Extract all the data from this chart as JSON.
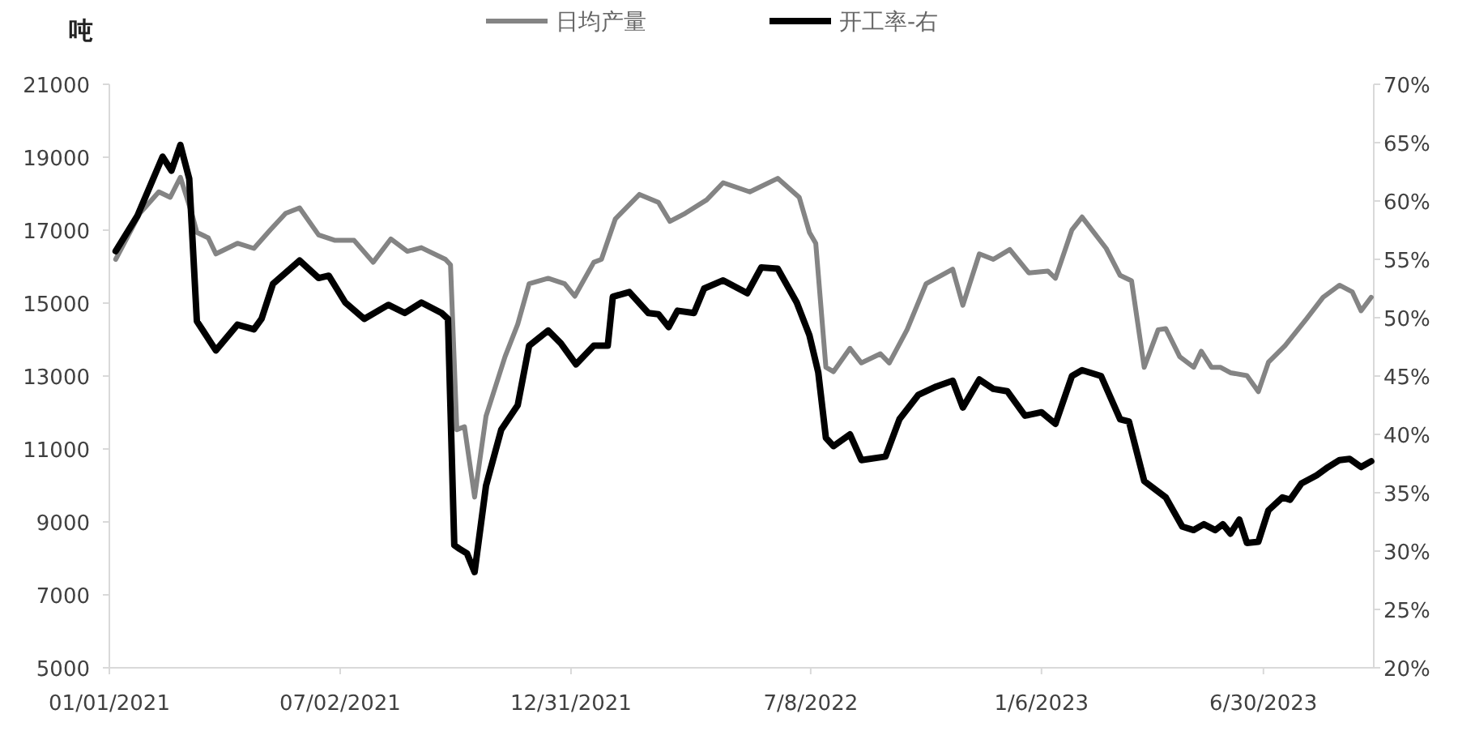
{
  "chart_data": {
    "type": "line",
    "ylabel": "吨",
    "legend": "top",
    "xlim": [
      "2021-01-01",
      "2023-09-25"
    ],
    "xticks": [
      {
        "value": "2021-01-01",
        "label": "01/01/2021"
      },
      {
        "value": "2021-07-02",
        "label": "07/02/2021"
      },
      {
        "value": "2021-12-31",
        "label": "12/31/2021"
      },
      {
        "value": "2022-07-08",
        "label": "7/8/2022"
      },
      {
        "value": "2023-01-06",
        "label": "1/6/2023"
      },
      {
        "value": "2023-06-30",
        "label": "6/30/2023"
      }
    ],
    "ylim": [
      5000,
      21000
    ],
    "yticks": [
      5000,
      7000,
      9000,
      11000,
      13000,
      15000,
      17000,
      19000,
      21000
    ],
    "y2lim": [
      20,
      70
    ],
    "y2ticks": [
      {
        "value": 20,
        "label": "20%"
      },
      {
        "value": 25,
        "label": "25%"
      },
      {
        "value": 30,
        "label": "30%"
      },
      {
        "value": 35,
        "label": "35%"
      },
      {
        "value": 40,
        "label": "40%"
      },
      {
        "value": 45,
        "label": "45%"
      },
      {
        "value": 50,
        "label": "50%"
      },
      {
        "value": 55,
        "label": "55%"
      },
      {
        "value": 60,
        "label": "60%"
      },
      {
        "value": 65,
        "label": "65%"
      },
      {
        "value": 70,
        "label": "70%"
      }
    ],
    "series": [
      {
        "name": "日均产量",
        "color": "#848484",
        "x": [
          "2021-01-06",
          "2021-01-25",
          "2021-02-09",
          "2021-02-18",
          "2021-02-26",
          "2021-03-07",
          "2021-03-11",
          "2021-03-20",
          "2021-03-26",
          "2021-04-12",
          "2021-04-25",
          "2021-05-08",
          "2021-05-20",
          "2021-05-31",
          "2021-06-15",
          "2021-06-28",
          "2021-07-13",
          "2021-07-28",
          "2021-08-11",
          "2021-08-24",
          "2021-09-04",
          "2021-09-23",
          "2021-09-27",
          "2021-10-02",
          "2021-10-08",
          "2021-10-16",
          "2021-10-25",
          "2021-11-09",
          "2021-11-19",
          "2021-11-28",
          "2021-12-13",
          "2021-12-26",
          "2022-01-03",
          "2022-01-18",
          "2022-01-24",
          "2022-02-04",
          "2022-02-23",
          "2022-03-10",
          "2022-03-19",
          "2022-03-31",
          "2022-04-17",
          "2022-04-30",
          "2022-05-21",
          "2022-06-12",
          "2022-06-29",
          "2022-07-07",
          "2022-07-12",
          "2022-07-20",
          "2022-07-26",
          "2022-08-08",
          "2022-08-17",
          "2022-09-01",
          "2022-09-08",
          "2022-09-22",
          "2022-10-07",
          "2022-10-28",
          "2022-11-05",
          "2022-11-18",
          "2022-11-29",
          "2022-12-12",
          "2022-12-27",
          "2023-01-11",
          "2023-01-17",
          "2023-01-30",
          "2023-02-07",
          "2023-02-26",
          "2023-03-09",
          "2023-03-18",
          "2023-03-28",
          "2023-04-08",
          "2023-04-14",
          "2023-04-25",
          "2023-05-06",
          "2023-05-12",
          "2023-05-20",
          "2023-05-27",
          "2023-06-04",
          "2023-06-17",
          "2023-06-26",
          "2023-07-04",
          "2023-07-17",
          "2023-08-03",
          "2023-08-16",
          "2023-08-29",
          "2023-09-08",
          "2023-09-15",
          "2023-09-23"
        ],
        "values": [
          16200,
          17460,
          18050,
          17900,
          18450,
          17460,
          16940,
          16790,
          16350,
          16640,
          16500,
          17010,
          17460,
          17610,
          16870,
          16720,
          16720,
          16120,
          16760,
          16420,
          16520,
          16200,
          16050,
          11530,
          11610,
          9680,
          11900,
          13530,
          14420,
          15530,
          15680,
          15530,
          15190,
          16120,
          16200,
          17310,
          17980,
          17760,
          17240,
          17460,
          17830,
          18300,
          18050,
          18420,
          17900,
          16940,
          16640,
          13240,
          13120,
          13760,
          13360,
          13610,
          13360,
          14270,
          15530,
          15930,
          14940,
          16350,
          16200,
          16470,
          15830,
          15880,
          15680,
          17010,
          17360,
          16500,
          15760,
          15610,
          13240,
          14270,
          14300,
          13530,
          13240,
          13680,
          13240,
          13240,
          13090,
          13010,
          12570,
          13380,
          13830,
          14570,
          15160,
          15490,
          15310,
          14790,
          15160
        ]
      },
      {
        "name": "开工率-右",
        "color": "#000000",
        "axis": "y2",
        "x": [
          "2021-01-06",
          "2021-01-23",
          "2021-02-03",
          "2021-02-12",
          "2021-02-19",
          "2021-02-26",
          "2021-03-05",
          "2021-03-11",
          "2021-03-26",
          "2021-04-12",
          "2021-04-25",
          "2021-05-01",
          "2021-05-10",
          "2021-05-31",
          "2021-06-15",
          "2021-06-23",
          "2021-07-06",
          "2021-07-21",
          "2021-08-09",
          "2021-08-22",
          "2021-09-04",
          "2021-09-20",
          "2021-09-25",
          "2021-09-30",
          "2021-10-04",
          "2021-10-10",
          "2021-10-16",
          "2021-10-25",
          "2021-11-06",
          "2021-11-19",
          "2021-11-28",
          "2021-12-13",
          "2021-12-23",
          "2022-01-04",
          "2022-01-18",
          "2022-01-29",
          "2022-02-02",
          "2022-02-15",
          "2022-03-02",
          "2022-03-10",
          "2022-03-18",
          "2022-03-25",
          "2022-04-07",
          "2022-04-15",
          "2022-04-30",
          "2022-05-19",
          "2022-05-30",
          "2022-06-12",
          "2022-06-27",
          "2022-07-07",
          "2022-07-14",
          "2022-07-20",
          "2022-07-26",
          "2022-08-08",
          "2022-08-17",
          "2022-09-05",
          "2022-09-16",
          "2022-10-01",
          "2022-10-15",
          "2022-10-28",
          "2022-11-05",
          "2022-11-18",
          "2022-11-29",
          "2022-12-10",
          "2022-12-24",
          "2023-01-06",
          "2023-01-17",
          "2023-01-30",
          "2023-02-07",
          "2023-02-22",
          "2023-03-09",
          "2023-03-16",
          "2023-03-28",
          "2023-04-14",
          "2023-04-27",
          "2023-05-06",
          "2023-05-14",
          "2023-05-23",
          "2023-05-29",
          "2023-06-04",
          "2023-06-11",
          "2023-06-17",
          "2023-06-26",
          "2023-07-04",
          "2023-07-15",
          "2023-07-21",
          "2023-07-30",
          "2023-08-11",
          "2023-08-20",
          "2023-08-29",
          "2023-09-06",
          "2023-09-15",
          "2023-09-23"
        ],
        "values": [
          55.7,
          58.7,
          61.5,
          63.8,
          62.6,
          64.8,
          61.9,
          49.7,
          47.2,
          49.4,
          49.0,
          49.9,
          52.9,
          54.9,
          53.4,
          53.6,
          51.3,
          49.9,
          51.1,
          50.4,
          51.3,
          50.4,
          49.9,
          30.5,
          30.2,
          29.8,
          28.2,
          35.6,
          40.4,
          42.5,
          47.6,
          48.9,
          47.8,
          46.0,
          47.6,
          47.6,
          51.8,
          52.2,
          50.4,
          50.3,
          49.2,
          50.6,
          50.4,
          52.5,
          53.2,
          52.1,
          54.3,
          54.2,
          51.3,
          48.5,
          45.3,
          39.7,
          39.0,
          40.0,
          37.8,
          38.1,
          41.3,
          43.4,
          44.1,
          44.6,
          42.3,
          44.7,
          43.9,
          43.7,
          41.6,
          41.9,
          40.9,
          45.0,
          45.5,
          45.0,
          41.3,
          41.1,
          36.0,
          34.6,
          32.1,
          31.8,
          32.3,
          31.8,
          32.3,
          31.5,
          32.7,
          30.7,
          30.8,
          33.5,
          34.6,
          34.4,
          35.8,
          36.5,
          37.2,
          37.8,
          37.9,
          37.2,
          37.7
        ]
      }
    ]
  }
}
